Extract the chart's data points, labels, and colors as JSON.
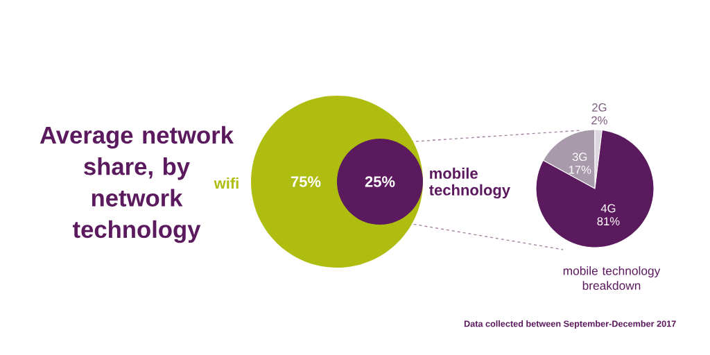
{
  "chart_data": [
    {
      "type": "other",
      "title": "Average network share, by network technology",
      "categories": [
        "wifi",
        "mobile technology"
      ],
      "values": [
        75,
        25
      ],
      "value_labels": [
        "75%",
        "25%"
      ],
      "colors": [
        "#afbd10",
        "#5c1a5e"
      ],
      "annotations": [
        "Data collected between September-December 2017"
      ]
    },
    {
      "type": "pie",
      "categories": [
        "2G",
        "3G",
        "4G"
      ],
      "values": [
        2,
        17,
        81
      ],
      "value_labels": [
        "2%",
        "17%",
        "81%"
      ],
      "colors": [
        "#dcd6de",
        "#a899ab",
        "#5c1a5e"
      ],
      "annotations": [
        "mobile technology breakdown"
      ]
    }
  ]
}
